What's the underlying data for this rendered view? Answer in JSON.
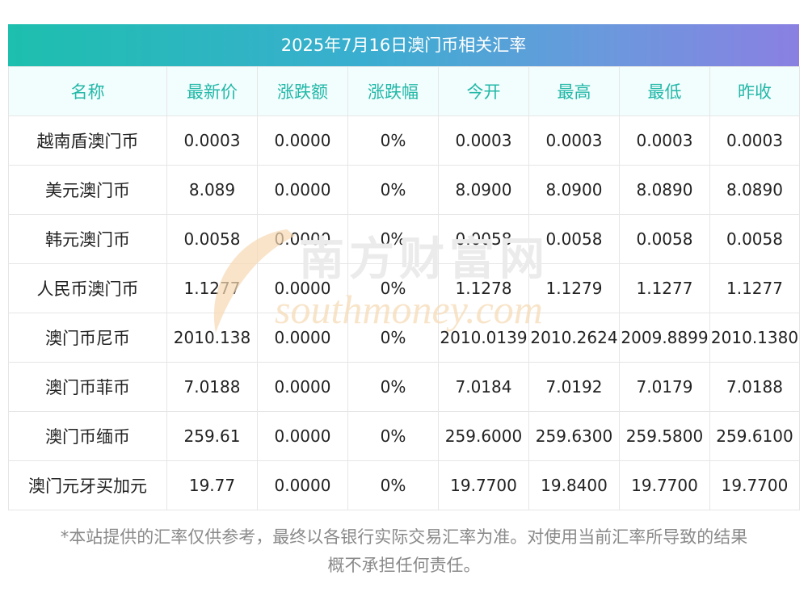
{
  "title": "2025年7月16日澳门币相关汇率",
  "columns": [
    "名称",
    "最新价",
    "涨跌额",
    "涨跌幅",
    "今开",
    "最高",
    "最低",
    "昨收"
  ],
  "rows": [
    [
      "越南盾澳门币",
      "0.0003",
      "0.0000",
      "0%",
      "0.0003",
      "0.0003",
      "0.0003",
      "0.0003"
    ],
    [
      "美元澳门币",
      "8.089",
      "0.0000",
      "0%",
      "8.0900",
      "8.0900",
      "8.0890",
      "8.0890"
    ],
    [
      "韩元澳门币",
      "0.0058",
      "0.0000",
      "0%",
      "0.0058",
      "0.0058",
      "0.0058",
      "0.0058"
    ],
    [
      "人民币澳门币",
      "1.1277",
      "0.0000",
      "0%",
      "1.1278",
      "1.1279",
      "1.1277",
      "1.1277"
    ],
    [
      "澳门币尼币",
      "2010.138",
      "0.0000",
      "0%",
      "2010.0139",
      "2010.2624",
      "2009.8899",
      "2010.1380"
    ],
    [
      "澳门币菲币",
      "7.0188",
      "0.0000",
      "0%",
      "7.0184",
      "7.0192",
      "7.0179",
      "7.0188"
    ],
    [
      "澳门币缅币",
      "259.61",
      "0.0000",
      "0%",
      "259.6000",
      "259.6300",
      "259.5800",
      "259.6100"
    ],
    [
      "澳门元牙买加元",
      "19.77",
      "0.0000",
      "0%",
      "19.7700",
      "19.8400",
      "19.7700",
      "19.7700"
    ]
  ],
  "watermark": {
    "cn": "南方财富网",
    "en": "southmoney.com"
  },
  "footnote": {
    "line1": "*本站提供的汇率仅供参考，最终以各银行实际交易汇率为准。对使用当前汇率所导致的结果",
    "line2": "概不承担任何责任。"
  },
  "colors": {
    "header_text": "#22b8a8",
    "header_bg": "#f2fdfd",
    "title_gradient_start": "#1dbfae",
    "title_gradient_end": "#8a80e2",
    "watermark": "#f6d9b3"
  }
}
